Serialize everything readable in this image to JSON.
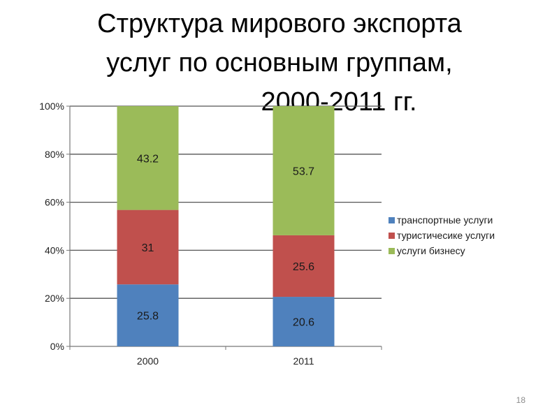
{
  "slide": {
    "title_line1": "Структура мирового экспорта",
    "title_line2": "услуг по основным группам,",
    "title_line3": "2000-2011 гг.",
    "page_number": "18"
  },
  "chart_data": {
    "type": "bar",
    "stacked": true,
    "percent_stacked": true,
    "categories": [
      "2000",
      "2011"
    ],
    "series": [
      {
        "name": "транспортные услуги",
        "color": "#4f81bd",
        "values": [
          25.8,
          20.6
        ]
      },
      {
        "name": "туристичесике услуги",
        "color": "#c0504d",
        "values": [
          31,
          25.6
        ]
      },
      {
        "name": "услуги бизнесу",
        "color": "#9bbb59",
        "values": [
          43.2,
          53.7
        ]
      }
    ],
    "data_labels": [
      [
        "25.8",
        "20.6"
      ],
      [
        "31",
        "25.6"
      ],
      [
        "43.2",
        "53.7"
      ]
    ],
    "y_ticks": [
      "0%",
      "20%",
      "40%",
      "60%",
      "80%",
      "100%"
    ],
    "ylim": [
      0,
      100
    ],
    "grid": true,
    "legend_position": "right"
  }
}
